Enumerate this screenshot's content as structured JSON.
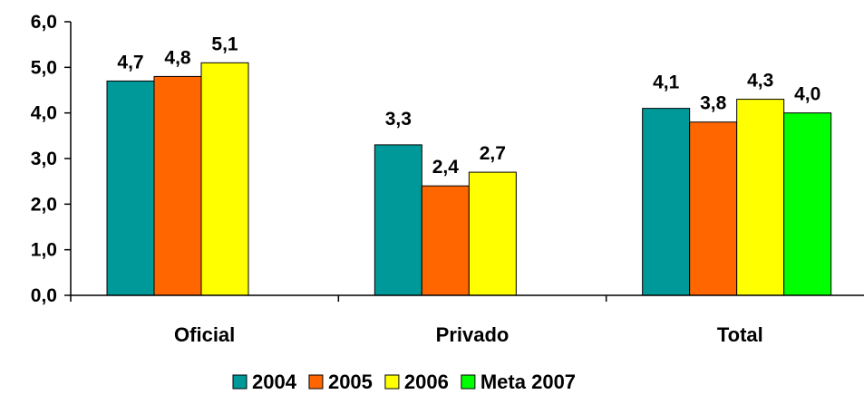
{
  "chart_data": {
    "type": "bar",
    "categories": [
      "Oficial",
      "Privado",
      "Total"
    ],
    "series": [
      {
        "name": "2004",
        "color": "#009999",
        "values": [
          4.7,
          3.3,
          4.1
        ]
      },
      {
        "name": "2005",
        "color": "#ff6600",
        "values": [
          4.8,
          2.4,
          3.8
        ]
      },
      {
        "name": "2006",
        "color": "#ffff00",
        "values": [
          5.1,
          2.7,
          4.3
        ]
      },
      {
        "name": "Meta 2007",
        "color": "#00ff00",
        "values": [
          null,
          null,
          4.0
        ]
      }
    ],
    "data_labels": [
      [
        "4,7",
        "3,3",
        "4,1"
      ],
      [
        "4,8",
        "2,4",
        "3,8"
      ],
      [
        "5,1",
        "2,7",
        "4,3"
      ],
      [
        null,
        null,
        "4,0"
      ]
    ],
    "yticks": [
      "0,0",
      "1,0",
      "2,0",
      "3,0",
      "4,0",
      "5,0",
      "6,0"
    ],
    "ylim": [
      0,
      6
    ],
    "grid": false,
    "legend": "bottom",
    "title": "",
    "xlabel": "",
    "ylabel": ""
  }
}
